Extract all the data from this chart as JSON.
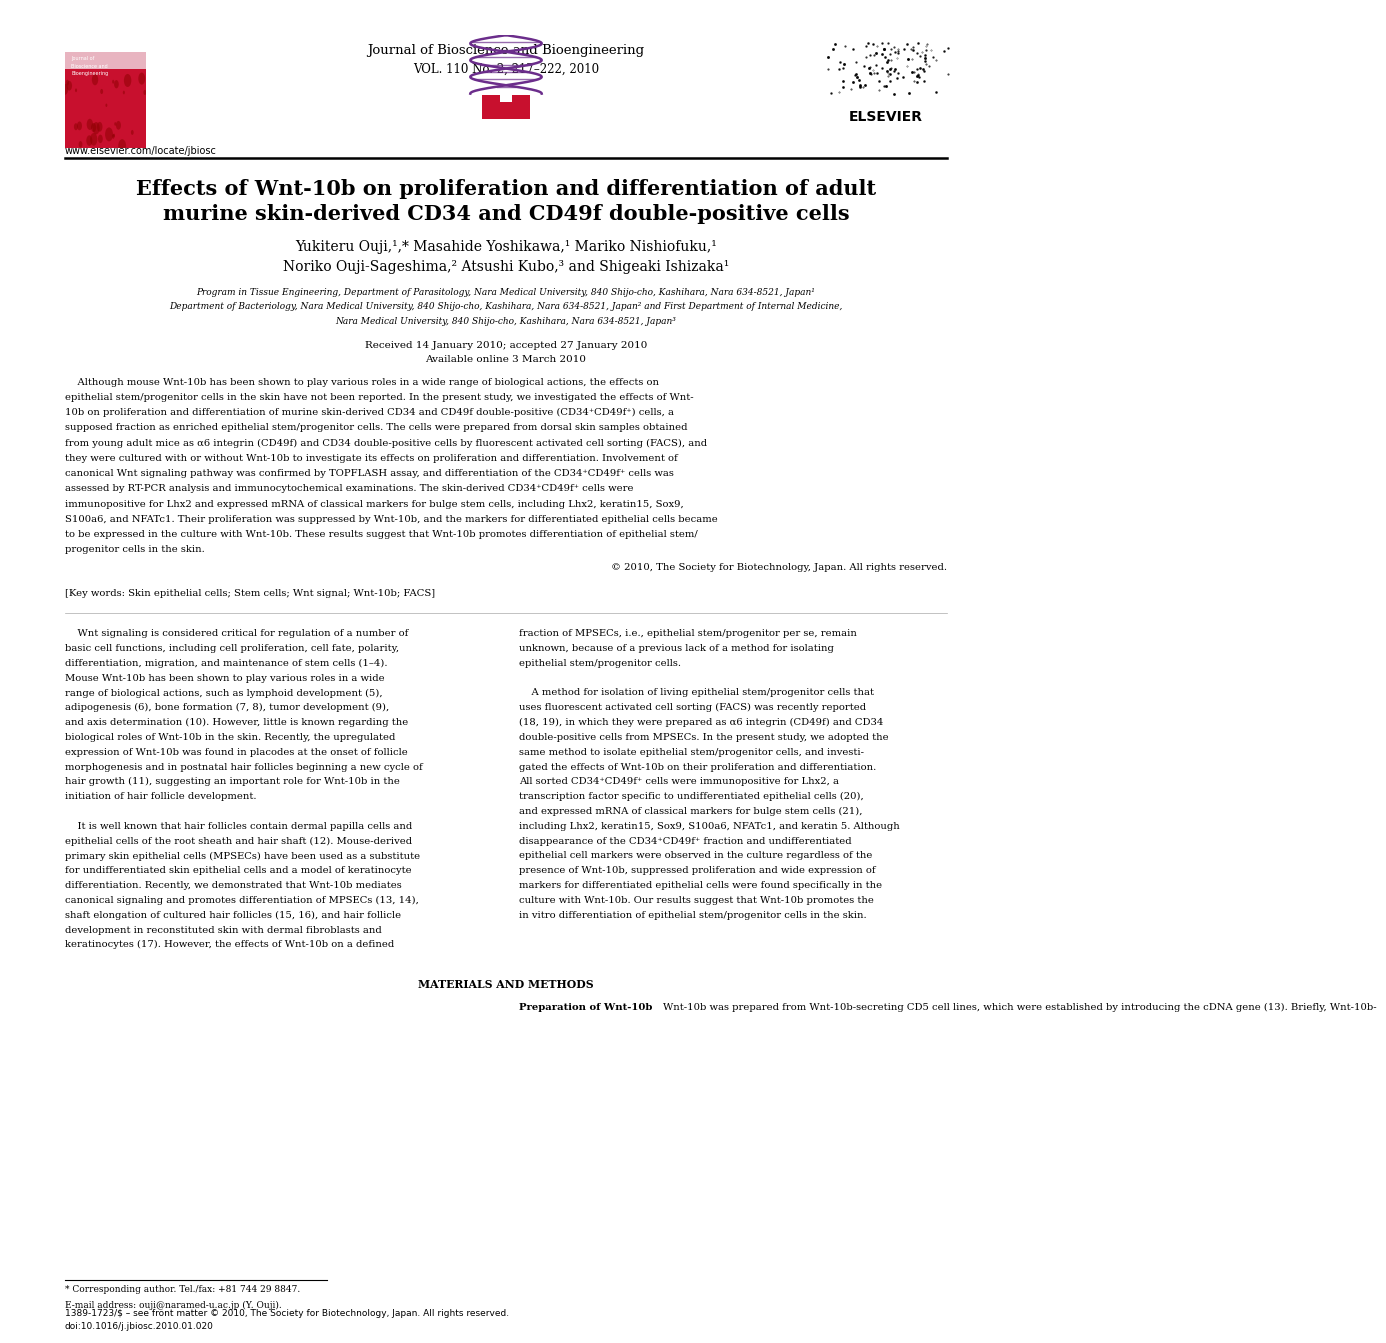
{
  "page_width": 9.92,
  "page_height": 13.23,
  "background_color": "#ffffff",
  "journal_name": "Journal of Bioscience and Bioengineering",
  "journal_vol": "VOL. 110 No. 2, 217–222, 2010",
  "journal_url": "www.elsevier.com/locate/jbiosc",
  "elsevier_text": "ELSEVIER",
  "title_line1": "Effects of Wnt-10b on proliferation and differentiation of adult",
  "title_line2": "murine skin-derived CD34 and CD49f double-positive cells",
  "authors_line1": "Yukiteru Ouji,¹,* Masahide Yoshikawa,¹ Mariko Nishiofuku,¹",
  "authors_line2": "Noriko Ouji-Sageshima,² Atsushi Kubo,³ and Shigeaki Ishizaka¹",
  "affil1": "Program in Tissue Engineering, Department of Parasitology, Nara Medical University, 840 Shijo-cho, Kashihara, Nara 634-8521, Japan¹",
  "affil2": "Department of Bacteriology, Nara Medical University, 840 Shijo-cho, Kashihara, Nara 634-8521, Japan² and First Department of Internal Medicine,",
  "affil3": "Nara Medical University, 840 Shijo-cho, Kashihara, Nara 634-8521, Japan³",
  "received": "Received 14 January 2010; accepted 27 January 2010",
  "available": "Available online 3 March 2010",
  "abstract_text": "Although mouse Wnt-10b has been shown to play various roles in a wide range of biological actions, the effects on epithelial stem/progenitor cells in the skin have not been reported. In the present study, we investigated the effects of Wnt-10b on proliferation and differentiation of murine skin-derived CD34 and CD49f double-positive (CD34⁺CD49f⁺) cells, a supposed fraction as enriched epithelial stem/progenitor cells. The cells were prepared from dorsal skin samples obtained from young adult mice as α6 integrin (CD49f) and CD34 double-positive cells by fluorescent activated cell sorting (FACS), and they were cultured with or without Wnt-10b to investigate its effects on proliferation and differentiation. Involvement of canonical Wnt signaling pathway was confirmed by TOPFLASH assay, and differentiation of the CD34⁺CD49f⁺ cells was assessed by RT-PCR analysis and immunocytochemical examinations. The skin-derived CD34⁺CD49f⁺ cells were immunopositive for Lhx2 and expressed mRNA of classical markers for bulge stem cells, including Lhx2, keratin15, Sox9, S100a6, and NFATc1. Their proliferation was suppressed by Wnt-10b, and the markers for differentiated epithelial cells became to be expressed in the culture with Wnt-10b. These results suggest that Wnt-10b promotes differentiation of epithelial stem/progenitor cells in the skin.",
  "copyright": "© 2010, The Society for Biotechnology, Japan. All rights reserved.",
  "keywords": "[Key words: Skin epithelial cells; Stem cells; Wnt signal; Wnt-10b; FACS]",
  "body_left": "    Wnt signaling is considered critical for regulation of a number of basic cell functions, including cell proliferation, cell fate, polarity, differentiation, migration, and maintenance of stem cells (1–4). Mouse Wnt-10b has been shown to play various roles in a wide range of biological actions, such as lymphoid development (5), adipogenesis (6), bone formation (7, 8), tumor development (9), and axis determination (10). However, little is known regarding the biological roles of Wnt-10b in the skin. Recently, the upregulated expression of Wnt-10b was found in placodes at the onset of follicle morphogenesis and in postnatal hair follicles beginning a new cycle of hair growth (11), suggesting an important role for Wnt-10b in the initiation of hair follicle development.\n    It is well known that hair follicles contain dermal papilla cells and epithelial cells of the root sheath and hair shaft (12). Mouse-derived primary skin epithelial cells (MPSECs) have been used as a substitute for undifferentiated skin epithelial cells and a model of keratinocyte differentiation. Recently, we demonstrated that Wnt-10b mediates canonical signaling and promotes differentiation of MPSECs (13, 14), shaft elongation of cultured hair follicles (15, 16), and hair follicle development in reconstituted skin with dermal fibroblasts and keratinocytes (17). However, the effects of Wnt-10b on a defined",
  "body_right": "fraction of MPSECs, i.e., epithelial stem/progenitor per se, remain unknown, because of a previous lack of a method for isolating epithelial stem/progenitor cells.\n    A method for isolation of living epithelial stem/progenitor cells that uses fluorescent activated cell sorting (FACS) was recently reported (18, 19), in which they were prepared as α6 integrin (CD49f) and CD34 double-positive cells from MPSECs. In the present study, we adopted the same method to isolate epithelial stem/progenitor cells, and investigated the effects of Wnt-10b on their proliferation and differentiation. All sorted CD34⁺CD49f⁺ cells were immunopositive for Lhx2, a transcription factor specific to undifferentiated epithelial cells (20), and expressed mRNA of classical markers for bulge stem cells (21), including Lhx2, keratin15, Sox9, S100a6, NFATc1, and keratin 5. Although disappearance of the CD34⁺CD49f⁺ fraction and undifferentiated epithelial cell markers were observed in the culture regardless of the presence of Wnt-10b, suppressed proliferation and wide expression of markers for differentiated epithelial cells were found specifically in the culture with Wnt-10b. Our results suggest that Wnt-10b promotes the in vitro differentiation of epithelial stem/progenitor cells in the skin.",
  "mm_title": "MATERIALS AND METHODS",
  "mm_subhead": "Preparation of Wnt-10b",
  "mm_text": "Wnt-10b was prepared from Wnt-10b-secreting CD5 cell lines, which were established by introducing the cDNA gene (13). Briefly, Wnt-10b-",
  "footer_star": "* Corresponding author. Tel./fax: +81 744 29 8847.",
  "footer_email": "E-mail address: ouji@naramed-u.ac.jp (Y. Ouji).",
  "footer_issn": "1389-1723/$ – see front matter © 2010, The Society for Biotechnology, Japan. All rights reserved.",
  "footer_doi": "doi:10.1016/j.jbiosc.2010.01.020"
}
